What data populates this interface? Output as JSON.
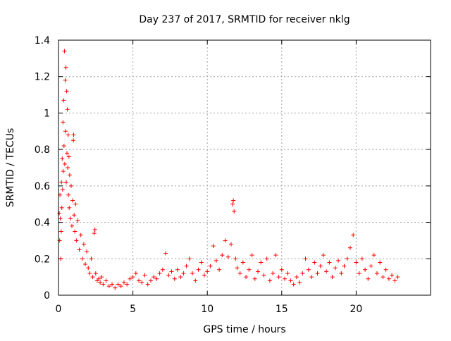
{
  "chart_data": {
    "type": "scatter",
    "title": "Day 237 of 2017, SRMTID for receiver nklg",
    "xlabel": "GPS time / hours",
    "ylabel": "SRMTID / TECUs",
    "xlim": [
      0,
      25
    ],
    "ylim": [
      0,
      1.4
    ],
    "xticks": [
      0,
      5,
      10,
      15,
      20
    ],
    "yticks": [
      0,
      0.2,
      0.4,
      0.6,
      0.8,
      1,
      1.2,
      1.4
    ],
    "xtick_labels": [
      "0",
      "5",
      "10",
      "15",
      "20"
    ],
    "ytick_labels": [
      "0",
      "0.2",
      "0.4",
      "0.6",
      "0.8",
      "1",
      "1.2",
      "1.4"
    ],
    "grid": true,
    "marker": "+",
    "series": [
      {
        "name": "SRMTID",
        "color": "#ff0000",
        "points": [
          [
            0.05,
            0.45
          ],
          [
            0.08,
            0.3
          ],
          [
            0.1,
            0.55
          ],
          [
            0.12,
            0.42
          ],
          [
            0.15,
            0.2
          ],
          [
            0.18,
            0.35
          ],
          [
            0.2,
            0.62
          ],
          [
            0.22,
            0.48
          ],
          [
            0.25,
            0.75
          ],
          [
            0.28,
            0.58
          ],
          [
            0.3,
            0.95
          ],
          [
            0.32,
            0.68
          ],
          [
            0.35,
            1.07
          ],
          [
            0.37,
            0.82
          ],
          [
            0.4,
            1.34
          ],
          [
            0.42,
            0.72
          ],
          [
            0.45,
            1.18
          ],
          [
            0.47,
            0.9
          ],
          [
            0.5,
            1.25
          ],
          [
            0.52,
            0.62
          ],
          [
            0.55,
            1.12
          ],
          [
            0.57,
            0.78
          ],
          [
            0.6,
            1.02
          ],
          [
            0.62,
            0.7
          ],
          [
            0.65,
            0.88
          ],
          [
            0.67,
            0.55
          ],
          [
            0.7,
            0.76
          ],
          [
            0.72,
            0.48
          ],
          [
            0.75,
            0.66
          ],
          [
            0.8,
            0.42
          ],
          [
            0.85,
            0.6
          ],
          [
            0.9,
            0.38
          ],
          [
            0.95,
            0.52
          ],
          [
            1.0,
            0.85
          ],
          [
            1.02,
            0.88
          ],
          [
            1.05,
            0.44
          ],
          [
            1.1,
            0.35
          ],
          [
            1.15,
            0.5
          ],
          [
            1.2,
            0.3
          ],
          [
            1.3,
            0.41
          ],
          [
            1.4,
            0.25
          ],
          [
            1.5,
            0.33
          ],
          [
            1.6,
            0.2
          ],
          [
            1.7,
            0.28
          ],
          [
            1.8,
            0.17
          ],
          [
            1.9,
            0.24
          ],
          [
            2.0,
            0.15
          ],
          [
            2.1,
            0.12
          ],
          [
            2.2,
            0.2
          ],
          [
            2.3,
            0.1
          ],
          [
            2.4,
            0.34
          ],
          [
            2.45,
            0.36
          ],
          [
            2.5,
            0.12
          ],
          [
            2.6,
            0.08
          ],
          [
            2.7,
            0.09
          ],
          [
            2.8,
            0.07
          ],
          [
            2.9,
            0.1
          ],
          [
            3.0,
            0.06
          ],
          [
            3.2,
            0.08
          ],
          [
            3.4,
            0.05
          ],
          [
            3.6,
            0.06
          ],
          [
            3.8,
            0.04
          ],
          [
            4.0,
            0.06
          ],
          [
            4.2,
            0.05
          ],
          [
            4.4,
            0.07
          ],
          [
            4.6,
            0.06
          ],
          [
            4.8,
            0.09
          ],
          [
            5.0,
            0.1
          ],
          [
            5.2,
            0.12
          ],
          [
            5.4,
            0.08
          ],
          [
            5.6,
            0.07
          ],
          [
            5.8,
            0.11
          ],
          [
            6.0,
            0.06
          ],
          [
            6.2,
            0.08
          ],
          [
            6.4,
            0.1
          ],
          [
            6.6,
            0.09
          ],
          [
            6.8,
            0.12
          ],
          [
            7.0,
            0.14
          ],
          [
            7.2,
            0.23
          ],
          [
            7.4,
            0.11
          ],
          [
            7.6,
            0.13
          ],
          [
            7.8,
            0.09
          ],
          [
            8.0,
            0.14
          ],
          [
            8.2,
            0.1
          ],
          [
            8.4,
            0.12
          ],
          [
            8.6,
            0.16
          ],
          [
            8.8,
            0.2
          ],
          [
            9.0,
            0.12
          ],
          [
            9.2,
            0.08
          ],
          [
            9.4,
            0.14
          ],
          [
            9.6,
            0.18
          ],
          [
            9.8,
            0.11
          ],
          [
            10.0,
            0.13
          ],
          [
            10.2,
            0.16
          ],
          [
            10.4,
            0.27
          ],
          [
            10.6,
            0.19
          ],
          [
            10.8,
            0.14
          ],
          [
            11.0,
            0.22
          ],
          [
            11.2,
            0.3
          ],
          [
            11.4,
            0.21
          ],
          [
            11.6,
            0.28
          ],
          [
            11.7,
            0.5
          ],
          [
            11.75,
            0.52
          ],
          [
            11.8,
            0.46
          ],
          [
            11.9,
            0.2
          ],
          [
            12.0,
            0.15
          ],
          [
            12.2,
            0.12
          ],
          [
            12.4,
            0.18
          ],
          [
            12.6,
            0.1
          ],
          [
            12.8,
            0.14
          ],
          [
            13.0,
            0.22
          ],
          [
            13.2,
            0.09
          ],
          [
            13.4,
            0.13
          ],
          [
            13.6,
            0.18
          ],
          [
            13.8,
            0.11
          ],
          [
            14.0,
            0.2
          ],
          [
            14.2,
            0.08
          ],
          [
            14.4,
            0.12
          ],
          [
            14.6,
            0.22
          ],
          [
            14.8,
            0.1
          ],
          [
            15.0,
            0.14
          ],
          [
            15.2,
            0.09
          ],
          [
            15.4,
            0.12
          ],
          [
            15.6,
            0.08
          ],
          [
            15.8,
            0.06
          ],
          [
            16.0,
            0.1
          ],
          [
            16.2,
            0.07
          ],
          [
            16.4,
            0.12
          ],
          [
            16.6,
            0.2
          ],
          [
            16.8,
            0.14
          ],
          [
            17.0,
            0.1
          ],
          [
            17.2,
            0.18
          ],
          [
            17.4,
            0.12
          ],
          [
            17.6,
            0.16
          ],
          [
            17.8,
            0.22
          ],
          [
            18.0,
            0.13
          ],
          [
            18.2,
            0.18
          ],
          [
            18.4,
            0.1
          ],
          [
            18.6,
            0.15
          ],
          [
            18.8,
            0.19
          ],
          [
            19.0,
            0.12
          ],
          [
            19.2,
            0.16
          ],
          [
            19.4,
            0.2
          ],
          [
            19.6,
            0.26
          ],
          [
            19.8,
            0.33
          ],
          [
            20.0,
            0.18
          ],
          [
            20.2,
            0.12
          ],
          [
            20.4,
            0.2
          ],
          [
            20.6,
            0.14
          ],
          [
            20.8,
            0.09
          ],
          [
            21.0,
            0.16
          ],
          [
            21.2,
            0.22
          ],
          [
            21.4,
            0.12
          ],
          [
            21.6,
            0.18
          ],
          [
            21.8,
            0.1
          ],
          [
            22.0,
            0.14
          ],
          [
            22.2,
            0.09
          ],
          [
            22.4,
            0.11
          ],
          [
            22.6,
            0.08
          ],
          [
            22.8,
            0.1
          ]
        ]
      }
    ]
  }
}
